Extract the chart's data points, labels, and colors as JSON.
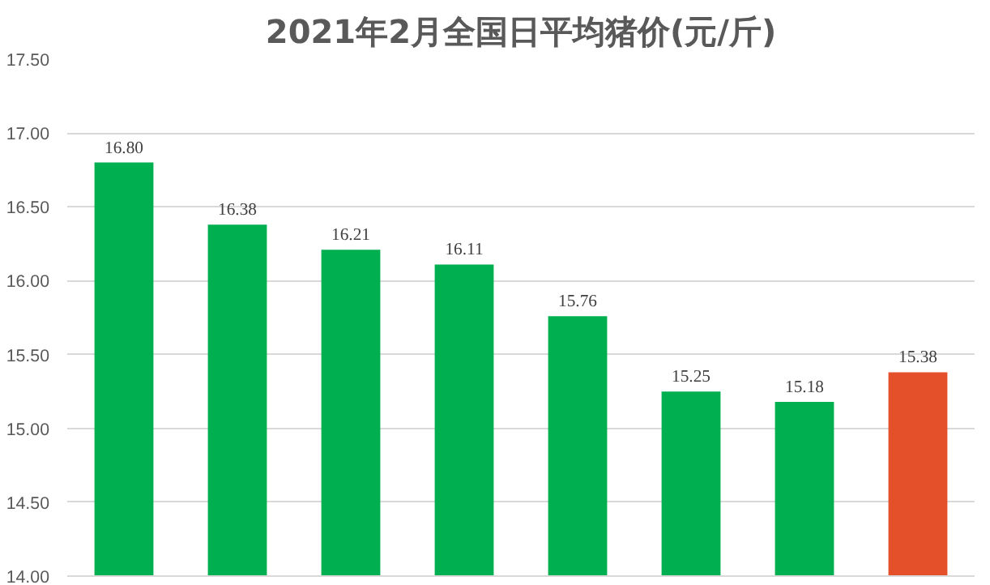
{
  "chart_data": {
    "type": "bar",
    "title": "2021年2月全国日平均猪价(元/斤)",
    "categories": [
      null,
      null,
      null,
      null,
      null,
      null,
      null,
      null
    ],
    "values": [
      16.8,
      16.38,
      16.21,
      16.11,
      15.76,
      15.25,
      15.18,
      15.38
    ],
    "value_labels": [
      "16.80",
      "16.38",
      "16.21",
      "16.11",
      "15.76",
      "15.25",
      "15.18",
      "15.38"
    ],
    "colors": [
      "#00b050",
      "#00b050",
      "#00b050",
      "#00b050",
      "#00b050",
      "#00b050",
      "#00b050",
      "#e4502a"
    ],
    "ylim": [
      14,
      17.5
    ],
    "yticks": [
      {
        "value": 14,
        "label": "14.00"
      },
      {
        "value": 14.5,
        "label": "14.50"
      },
      {
        "value": 15,
        "label": "15.00"
      },
      {
        "value": 15.5,
        "label": "15.50"
      },
      {
        "value": 16,
        "label": "16.00"
      },
      {
        "value": 16.5,
        "label": "16.50"
      },
      {
        "value": 17,
        "label": "17.00"
      },
      {
        "value": 17.5,
        "label": "17.50"
      }
    ],
    "grid": "y"
  }
}
